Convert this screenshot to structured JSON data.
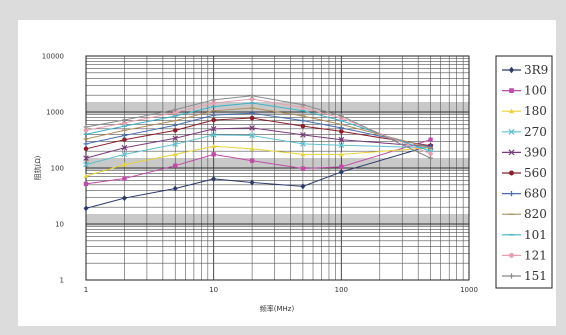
{
  "chart_data": {
    "type": "line",
    "title": "",
    "xlabel": "频率(MHz)",
    "ylabel": "阻抗(Ω)",
    "xscale": "log",
    "yscale": "log",
    "xlim": [
      1,
      1000
    ],
    "ylim": [
      1,
      10000
    ],
    "x_ticks": [
      "1",
      "10",
      "100",
      "1000"
    ],
    "y_ticks": [
      "1",
      "10",
      "100",
      "1000",
      "10000"
    ],
    "grid": true,
    "legend_position": "right",
    "x": [
      1,
      2,
      5,
      10,
      20,
      50,
      100,
      500
    ],
    "series": [
      {
        "name": "3R9",
        "color": "#2b3a6b",
        "marker": "diamond",
        "values": [
          19,
          29,
          43,
          64,
          55,
          47,
          85,
          250
        ]
      },
      {
        "name": "100",
        "color": "#c04aa8",
        "marker": "square",
        "values": [
          52,
          65,
          110,
          175,
          135,
          98,
          105,
          320
        ]
      },
      {
        "name": "180",
        "color": "#e6d23a",
        "marker": "triangle",
        "values": [
          72,
          115,
          175,
          245,
          220,
          175,
          175,
          230
        ]
      },
      {
        "name": "270",
        "color": "#5fc0cf",
        "marker": "x",
        "values": [
          115,
          175,
          265,
          390,
          380,
          270,
          255,
          230
        ]
      },
      {
        "name": "390",
        "color": "#7a3b7a",
        "marker": "x",
        "values": [
          150,
          230,
          340,
          500,
          520,
          390,
          320,
          240
        ]
      },
      {
        "name": "560",
        "color": "#8b1e2b",
        "marker": "circle",
        "values": [
          220,
          320,
          470,
          720,
          780,
          560,
          450,
          250
        ]
      },
      {
        "name": "680",
        "color": "#4a6fb0",
        "marker": "plus",
        "values": [
          270,
          380,
          580,
          880,
          950,
          700,
          520,
          240
        ]
      },
      {
        "name": "820",
        "color": "#b09060",
        "marker": "dash",
        "values": [
          330,
          470,
          700,
          1050,
          1180,
          850,
          600,
          230
        ]
      },
      {
        "name": "101",
        "color": "#3bb0c8",
        "marker": "dash",
        "values": [
          400,
          560,
          850,
          1250,
          1450,
          1050,
          700,
          200
        ]
      },
      {
        "name": "121",
        "color": "#e8a0b0",
        "marker": "circle",
        "values": [
          470,
          640,
          980,
          1450,
          1700,
          1200,
          780,
          180
        ]
      },
      {
        "name": "151",
        "color": "#8a8a8a",
        "marker": "plus",
        "values": [
          540,
          720,
          1100,
          1650,
          1950,
          1350,
          850,
          150
        ]
      }
    ]
  }
}
